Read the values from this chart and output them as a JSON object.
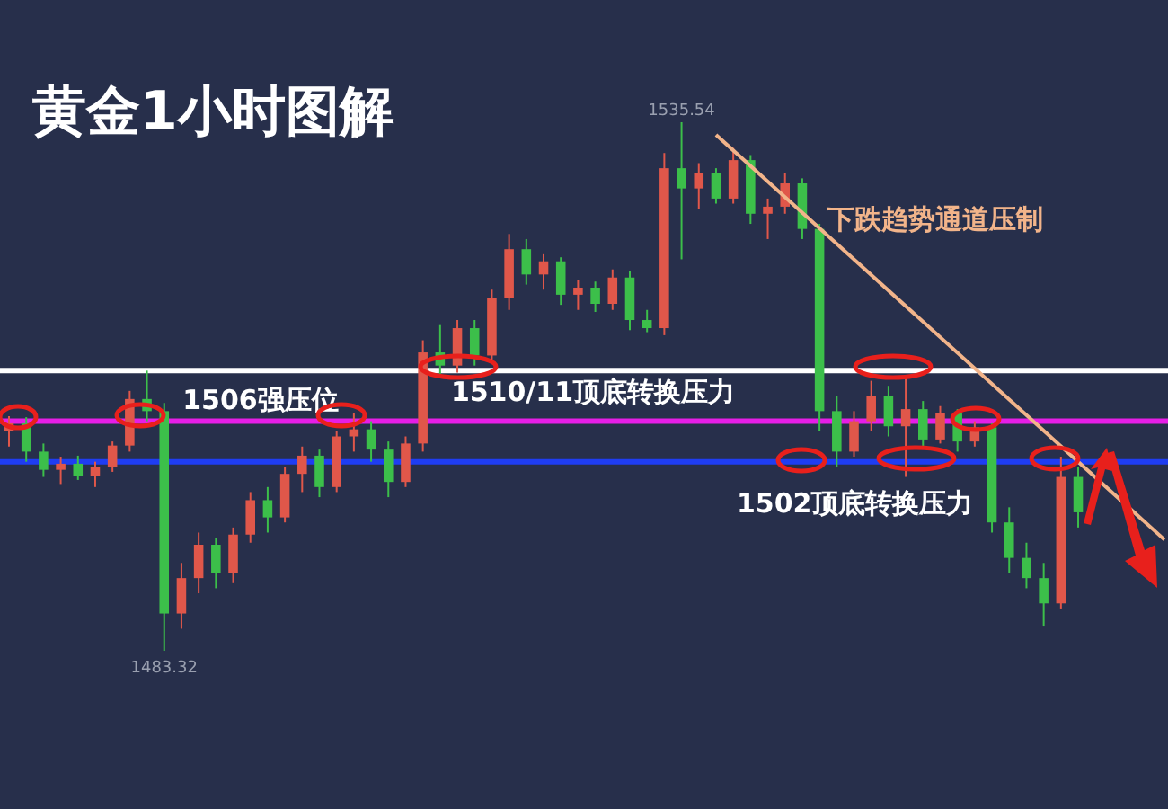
{
  "chart_data": {
    "type": "candlestick",
    "title": "黄金1小时图解",
    "categories": [
      null,
      null,
      null,
      null,
      null,
      null,
      null,
      null,
      null,
      null,
      null,
      null,
      null,
      null,
      null,
      null,
      null,
      null,
      null,
      null,
      null,
      null,
      null,
      null,
      null,
      null,
      null,
      null,
      null,
      null,
      null,
      null,
      null,
      null,
      null,
      null,
      null,
      null,
      null,
      null,
      null,
      null,
      null,
      null,
      null,
      null,
      null,
      null,
      null,
      null,
      null,
      null,
      null,
      null,
      null,
      null,
      null,
      null,
      null,
      null,
      null,
      null,
      null,
      null,
      null,
      null,
      null,
      null
    ],
    "ohlc": [
      [
        1505.0,
        1506.5,
        1503.5,
        1505.8
      ],
      [
        1505.8,
        1506.4,
        1502.0,
        1503.0
      ],
      [
        1503.0,
        1503.8,
        1500.5,
        1501.2
      ],
      [
        1501.2,
        1502.5,
        1499.8,
        1501.8
      ],
      [
        1501.8,
        1502.6,
        1500.2,
        1500.6
      ],
      [
        1500.6,
        1502.0,
        1499.5,
        1501.5
      ],
      [
        1501.5,
        1504.0,
        1501.0,
        1503.6
      ],
      [
        1503.6,
        1509.0,
        1503.0,
        1508.2
      ],
      [
        1508.2,
        1511.0,
        1506.0,
        1507.0
      ],
      [
        1507.0,
        1507.8,
        1483.32,
        1487.0
      ],
      [
        1487.0,
        1492.0,
        1485.5,
        1490.5
      ],
      [
        1490.5,
        1495.0,
        1489.0,
        1493.8
      ],
      [
        1493.8,
        1494.5,
        1489.5,
        1491.0
      ],
      [
        1491.0,
        1495.5,
        1490.0,
        1494.8
      ],
      [
        1494.8,
        1499.0,
        1494.0,
        1498.2
      ],
      [
        1498.2,
        1499.5,
        1495.0,
        1496.5
      ],
      [
        1496.5,
        1501.5,
        1496.0,
        1500.8
      ],
      [
        1500.8,
        1503.5,
        1499.0,
        1502.6
      ],
      [
        1502.6,
        1503.2,
        1498.5,
        1499.5
      ],
      [
        1499.5,
        1505.0,
        1499.0,
        1504.5
      ],
      [
        1504.5,
        1506.8,
        1503.0,
        1505.2
      ],
      [
        1505.2,
        1506.0,
        1502.0,
        1503.2
      ],
      [
        1503.2,
        1504.0,
        1498.5,
        1500.0
      ],
      [
        1500.0,
        1504.5,
        1499.5,
        1503.8
      ],
      [
        1503.8,
        1514.0,
        1503.0,
        1512.8
      ],
      [
        1512.8,
        1515.5,
        1510.5,
        1511.5
      ],
      [
        1511.5,
        1516.0,
        1510.8,
        1515.2
      ],
      [
        1515.2,
        1516.0,
        1511.5,
        1512.5
      ],
      [
        1512.5,
        1519.0,
        1512.0,
        1518.2
      ],
      [
        1518.2,
        1524.5,
        1517.0,
        1523.0
      ],
      [
        1523.0,
        1524.0,
        1519.5,
        1520.5
      ],
      [
        1520.5,
        1522.5,
        1519.0,
        1521.8
      ],
      [
        1521.8,
        1522.2,
        1517.5,
        1518.5
      ],
      [
        1518.5,
        1520.0,
        1517.0,
        1519.2
      ],
      [
        1519.2,
        1519.8,
        1516.8,
        1517.6
      ],
      [
        1517.6,
        1521.0,
        1517.0,
        1520.2
      ],
      [
        1520.2,
        1520.8,
        1515.0,
        1516.0
      ],
      [
        1516.0,
        1517.0,
        1514.8,
        1515.2
      ],
      [
        1515.2,
        1532.5,
        1514.5,
        1531.0
      ],
      [
        1531.0,
        1535.54,
        1522.0,
        1529.0
      ],
      [
        1529.0,
        1531.5,
        1527.0,
        1530.5
      ],
      [
        1530.5,
        1531.0,
        1527.5,
        1528.0
      ],
      [
        1528.0,
        1533.0,
        1527.5,
        1531.8
      ],
      [
        1531.8,
        1532.3,
        1525.5,
        1526.5
      ],
      [
        1526.5,
        1528.0,
        1524.0,
        1527.2
      ],
      [
        1527.2,
        1530.5,
        1526.5,
        1529.5
      ],
      [
        1529.5,
        1530.0,
        1524.0,
        1525.0
      ],
      [
        1525.0,
        1525.5,
        1505.0,
        1507.0
      ],
      [
        1507.0,
        1508.5,
        1501.5,
        1503.0
      ],
      [
        1503.0,
        1507.0,
        1502.5,
        1506.0
      ],
      [
        1506.0,
        1510.0,
        1505.0,
        1508.5
      ],
      [
        1508.5,
        1509.5,
        1504.5,
        1505.5
      ],
      [
        1505.5,
        1510.5,
        1500.5,
        1507.2
      ],
      [
        1507.2,
        1508.0,
        1503.5,
        1504.2
      ],
      [
        1504.2,
        1507.5,
        1503.8,
        1506.8
      ],
      [
        1506.8,
        1507.2,
        1503.0,
        1504.0
      ],
      [
        1504.0,
        1506.0,
        1503.5,
        1505.4
      ],
      [
        1505.4,
        1505.8,
        1495.0,
        1496.0
      ],
      [
        1496.0,
        1497.5,
        1491.0,
        1492.5
      ],
      [
        1492.5,
        1494.0,
        1489.5,
        1490.5
      ],
      [
        1490.5,
        1492.0,
        1485.8,
        1488.0
      ],
      [
        1488.0,
        1502.5,
        1487.5,
        1500.5
      ],
      [
        1500.5,
        1501.5,
        1495.5,
        1497.0
      ],
      null,
      null,
      null,
      null,
      null
    ],
    "colors": [
      "#e0574a",
      "#3cbf4a",
      "#3cbf4a",
      "#e0574a",
      "#3cbf4a",
      "#e0574a",
      "#e0574a",
      "#e0574a",
      "#3cbf4a",
      "#3cbf4a",
      "#e0574a",
      "#e0574a",
      "#3cbf4a",
      "#e0574a",
      "#e0574a",
      "#3cbf4a",
      "#e0574a",
      "#e0574a",
      "#3cbf4a",
      "#e0574a",
      "#e0574a",
      "#3cbf4a",
      "#3cbf4a",
      "#e0574a",
      "#e0574a",
      "#3cbf4a",
      "#e0574a",
      "#3cbf4a",
      "#e0574a",
      "#e0574a",
      "#3cbf4a",
      "#e0574a",
      "#3cbf4a",
      "#e0574a",
      "#3cbf4a",
      "#e0574a",
      "#3cbf4a",
      "#3cbf4a",
      "#e0574a",
      "#3cbf4a",
      "#e0574a",
      "#3cbf4a",
      "#e0574a",
      "#3cbf4a",
      "#e0574a",
      "#e0574a",
      "#3cbf4a",
      "#3cbf4a",
      "#3cbf4a",
      "#e0574a",
      "#e0574a",
      "#3cbf4a",
      "#e0574a",
      "#3cbf4a",
      "#e0574a",
      "#3cbf4a",
      "#e0574a",
      "#3cbf4a",
      "#3cbf4a",
      "#3cbf4a",
      "#3cbf4a",
      "#e0574a",
      "#3cbf4a",
      null,
      null,
      null,
      null,
      null
    ],
    "series": [
      {
        "type": "line",
        "name": "下跌趋势通道压制",
        "color": "#f2b48a",
        "values": [
          null,
          null,
          null,
          null,
          null,
          null,
          null,
          null,
          null,
          null,
          null,
          null,
          null,
          null,
          null,
          null,
          null,
          null,
          null,
          null,
          null,
          null,
          null,
          null,
          null,
          null,
          null,
          null,
          null,
          null,
          null,
          null,
          null,
          null,
          null,
          null,
          null,
          null,
          null,
          null,
          null,
          1534.3,
          null,
          null,
          null,
          null,
          null,
          null,
          null,
          null,
          null,
          null,
          null,
          null,
          null,
          null,
          null,
          null,
          null,
          null,
          null,
          null,
          null,
          null,
          null,
          null,
          null,
          1494.3
        ]
      }
    ],
    "ref_lines": [
      {
        "axis": "y",
        "value": 1511,
        "label": "1510/11顶底转换压力",
        "color": "#ffffff"
      },
      {
        "axis": "y",
        "value": 1506,
        "label": "1506强压位",
        "color": "#e61ee6"
      },
      {
        "axis": "y",
        "value": 1502,
        "label": "1502顶底转换压力",
        "color": "#1f3df2"
      }
    ],
    "annotations": [
      {
        "text": "1535.54",
        "y": 1535.54
      },
      {
        "text": "1483.32",
        "y": 1483.32
      }
    ]
  }
}
